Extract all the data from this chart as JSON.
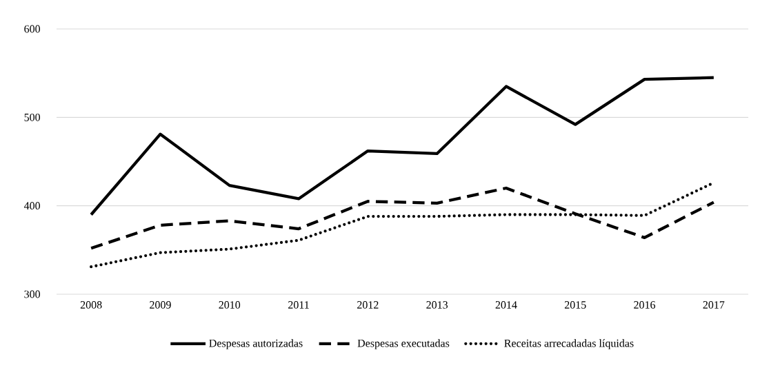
{
  "chart_data": {
    "type": "line",
    "categories": [
      "2008",
      "2009",
      "2010",
      "2011",
      "2012",
      "2013",
      "2014",
      "2015",
      "2016",
      "2017"
    ],
    "series": [
      {
        "name": "Despesas autorizadas",
        "color": "#000000",
        "line_style": "solid",
        "values": [
          390,
          481,
          423,
          408,
          462,
          459,
          535,
          492,
          543,
          545
        ]
      },
      {
        "name": "Despesas executadas",
        "color": "#000000",
        "line_style": "dashed",
        "values": [
          352,
          378,
          383,
          374,
          405,
          403,
          420,
          391,
          364,
          404
        ]
      },
      {
        "name": "Receitas arrecadadas líquidas",
        "color": "#000000",
        "line_style": "dotted",
        "values": [
          331,
          347,
          351,
          361,
          388,
          388,
          390,
          390,
          389,
          426
        ]
      }
    ],
    "ylim": [
      300,
      600
    ],
    "yticks": [
      300,
      400,
      500,
      600
    ],
    "grid": "y",
    "legend": "bottom"
  }
}
